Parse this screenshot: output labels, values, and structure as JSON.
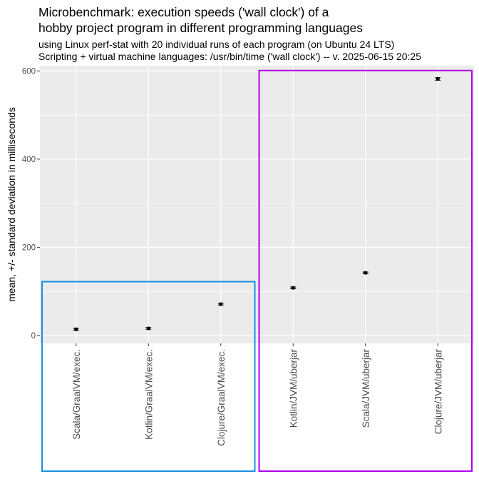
{
  "chart_data": {
    "type": "scatter",
    "title_lines": [
      "Microbenchmark: execution speeds ('wall clock') of a",
      "hobby project program in different programming languages"
    ],
    "subtitle_lines": [
      "using Linux perf-stat with 20 individual runs of each program (on Ubuntu 24 LTS)",
      "Scripting + virtual machine languages: /usr/bin/time ('wall clock') -- v. 2025-06-15 20:25"
    ],
    "xlabel": "",
    "ylabel": "mean, +/- standard deviation in milliseconds",
    "categories": [
      "Scala/GraalVM/exec.",
      "Kotlin/GraalVM/exec.",
      "Clojure/GraalVM/exec.",
      "Kotlin/JVM/uberjar",
      "Scala/JVM/uberjar",
      "Clojure/JVM/uberjar"
    ],
    "values": [
      14,
      16,
      71,
      108,
      142,
      582
    ],
    "sd": [
      2,
      2,
      2,
      2,
      2,
      3
    ],
    "y_ticks": [
      0,
      200,
      400,
      600
    ],
    "ylim": [
      -18,
      612
    ],
    "grid": true,
    "groups": [
      {
        "from": 0,
        "to": 2,
        "color": "#1a8fe3"
      },
      {
        "from": 3,
        "to": 5,
        "color": "#b000e8"
      }
    ],
    "colors": {
      "panel": "#ebebeb",
      "grid_major": "#ffffff",
      "point": "#000000"
    }
  }
}
